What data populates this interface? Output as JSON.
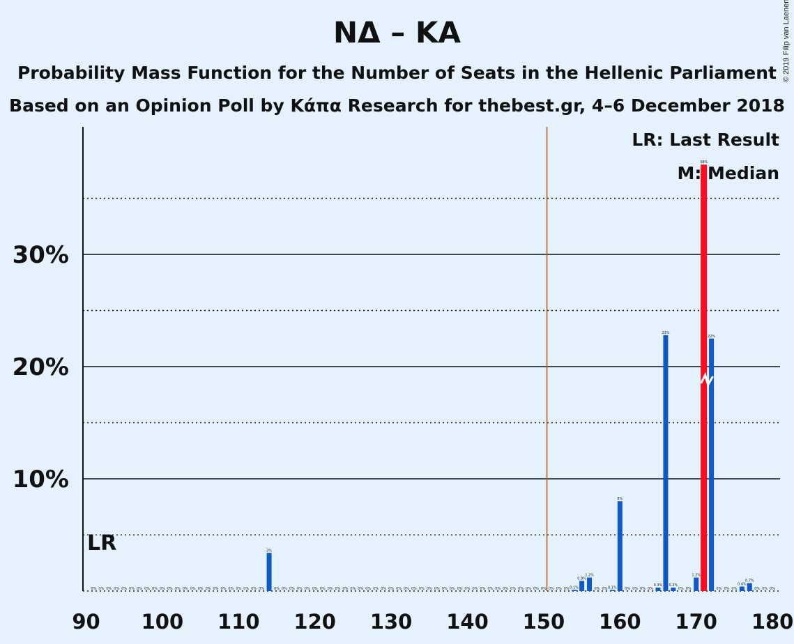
{
  "title": "ΝΔ – ΚΑ",
  "subtitle1": "Probability Mass Function for the Number of Seats in the Hellenic Parliament",
  "subtitle2": "Based on an Opinion Poll by Κάπα Research for thebest.gr, 4–6 December 2018",
  "copyright": "© 2019 Filip van Laenen",
  "legend": {
    "lr": "LR: Last Result",
    "median": "M: Median"
  },
  "lr_marker": "LR",
  "chart_data": {
    "type": "bar",
    "xlim": [
      90,
      180
    ],
    "ylim": [
      0,
      0.41
    ],
    "x_ticks": [
      "90",
      "100",
      "110",
      "120",
      "130",
      "140",
      "150",
      "160",
      "170",
      "180"
    ],
    "y_ticks": [
      "10%",
      "20%",
      "30%"
    ],
    "majority_line": 151,
    "last_result": 91,
    "median": 171,
    "colors": {
      "bar": "#0f5ac7",
      "median_bar": "#ff0a1e",
      "majority": "#b5651d",
      "background": "#e5f2fd"
    },
    "bars": [
      {
        "x": 91,
        "v": 0,
        "label": "0%"
      },
      {
        "x": 92,
        "v": 0,
        "label": "0%"
      },
      {
        "x": 93,
        "v": 0,
        "label": "0%"
      },
      {
        "x": 94,
        "v": 0,
        "label": "0%"
      },
      {
        "x": 95,
        "v": 0,
        "label": "0%"
      },
      {
        "x": 96,
        "v": 0,
        "label": "0%"
      },
      {
        "x": 97,
        "v": 0,
        "label": "0%"
      },
      {
        "x": 98,
        "v": 0,
        "label": "0%"
      },
      {
        "x": 99,
        "v": 0,
        "label": "0%"
      },
      {
        "x": 100,
        "v": 0,
        "label": "0%"
      },
      {
        "x": 101,
        "v": 0,
        "label": "0%"
      },
      {
        "x": 102,
        "v": 0,
        "label": "0%"
      },
      {
        "x": 103,
        "v": 0,
        "label": "0%"
      },
      {
        "x": 104,
        "v": 0,
        "label": "0%"
      },
      {
        "x": 105,
        "v": 0,
        "label": "0%"
      },
      {
        "x": 106,
        "v": 0,
        "label": "0%"
      },
      {
        "x": 107,
        "v": 0,
        "label": "0%"
      },
      {
        "x": 108,
        "v": 0,
        "label": "0%"
      },
      {
        "x": 109,
        "v": 0,
        "label": "0%"
      },
      {
        "x": 110,
        "v": 0,
        "label": "0%"
      },
      {
        "x": 111,
        "v": 0,
        "label": "0%"
      },
      {
        "x": 112,
        "v": 0,
        "label": "0%"
      },
      {
        "x": 113,
        "v": 0,
        "label": "0%"
      },
      {
        "x": 114,
        "v": 0.034,
        "label": "3%"
      },
      {
        "x": 115,
        "v": 0,
        "label": "0%"
      },
      {
        "x": 116,
        "v": 0,
        "label": "0%"
      },
      {
        "x": 117,
        "v": 0,
        "label": "0%"
      },
      {
        "x": 118,
        "v": 0,
        "label": "0%"
      },
      {
        "x": 119,
        "v": 0,
        "label": "0%"
      },
      {
        "x": 120,
        "v": 0,
        "label": "0%"
      },
      {
        "x": 121,
        "v": 0,
        "label": "0%"
      },
      {
        "x": 122,
        "v": 0,
        "label": "0%"
      },
      {
        "x": 123,
        "v": 0,
        "label": "0%"
      },
      {
        "x": 124,
        "v": 0,
        "label": "0%"
      },
      {
        "x": 125,
        "v": 0,
        "label": "0%"
      },
      {
        "x": 126,
        "v": 0,
        "label": "0%"
      },
      {
        "x": 127,
        "v": 0,
        "label": "0%"
      },
      {
        "x": 128,
        "v": 0,
        "label": "0%"
      },
      {
        "x": 129,
        "v": 0,
        "label": "0%"
      },
      {
        "x": 130,
        "v": 0,
        "label": "0%"
      },
      {
        "x": 131,
        "v": 0,
        "label": "0%"
      },
      {
        "x": 132,
        "v": 0,
        "label": "0%"
      },
      {
        "x": 133,
        "v": 0,
        "label": "0%"
      },
      {
        "x": 134,
        "v": 0,
        "label": "0%"
      },
      {
        "x": 135,
        "v": 0,
        "label": "0%"
      },
      {
        "x": 136,
        "v": 0,
        "label": "0%"
      },
      {
        "x": 137,
        "v": 0,
        "label": "0%"
      },
      {
        "x": 138,
        "v": 0,
        "label": "0%"
      },
      {
        "x": 139,
        "v": 0,
        "label": "0%"
      },
      {
        "x": 140,
        "v": 0,
        "label": "0%"
      },
      {
        "x": 141,
        "v": 0,
        "label": "0%"
      },
      {
        "x": 142,
        "v": 0,
        "label": "0%"
      },
      {
        "x": 143,
        "v": 0,
        "label": "0%"
      },
      {
        "x": 144,
        "v": 0,
        "label": "0%"
      },
      {
        "x": 145,
        "v": 0,
        "label": "0%"
      },
      {
        "x": 146,
        "v": 0,
        "label": "0%"
      },
      {
        "x": 147,
        "v": 0,
        "label": "0%"
      },
      {
        "x": 148,
        "v": 0,
        "label": "0%"
      },
      {
        "x": 149,
        "v": 0,
        "label": "0%"
      },
      {
        "x": 150,
        "v": 0,
        "label": "0%"
      },
      {
        "x": 151,
        "v": 0,
        "label": "0%"
      },
      {
        "x": 152,
        "v": 0,
        "label": "0%"
      },
      {
        "x": 153,
        "v": 0,
        "label": "0%"
      },
      {
        "x": 154,
        "v": 0.001,
        "label": "0.1%"
      },
      {
        "x": 155,
        "v": 0.009,
        "label": "0.9%"
      },
      {
        "x": 156,
        "v": 0.012,
        "label": "1.2%"
      },
      {
        "x": 157,
        "v": 0,
        "label": "0%"
      },
      {
        "x": 158,
        "v": 0,
        "label": "0%"
      },
      {
        "x": 159,
        "v": 0.001,
        "label": "0.1%"
      },
      {
        "x": 160,
        "v": 0.08,
        "label": "8%"
      },
      {
        "x": 161,
        "v": 0,
        "label": "0%"
      },
      {
        "x": 162,
        "v": 0,
        "label": "0%"
      },
      {
        "x": 163,
        "v": 0,
        "label": "0%"
      },
      {
        "x": 164,
        "v": 0,
        "label": "0%"
      },
      {
        "x": 165,
        "v": 0.003,
        "label": "0.3%"
      },
      {
        "x": 166,
        "v": 0.228,
        "label": "23%"
      },
      {
        "x": 167,
        "v": 0.003,
        "label": "0.3%"
      },
      {
        "x": 168,
        "v": 0,
        "label": "0%"
      },
      {
        "x": 169,
        "v": 0,
        "label": "0%"
      },
      {
        "x": 170,
        "v": 0.012,
        "label": "1.2%"
      },
      {
        "x": 171,
        "v": 0.38,
        "label": "38%"
      },
      {
        "x": 172,
        "v": 0.225,
        "label": "22%"
      },
      {
        "x": 173,
        "v": 0,
        "label": "0%"
      },
      {
        "x": 174,
        "v": 0,
        "label": "0%"
      },
      {
        "x": 175,
        "v": 0,
        "label": "0%"
      },
      {
        "x": 176,
        "v": 0.004,
        "label": "0.4%"
      },
      {
        "x": 177,
        "v": 0.007,
        "label": "0.7%"
      },
      {
        "x": 178,
        "v": 0,
        "label": "0%"
      },
      {
        "x": 179,
        "v": 0,
        "label": "0%"
      },
      {
        "x": 180,
        "v": 0,
        "label": "0%"
      }
    ]
  }
}
